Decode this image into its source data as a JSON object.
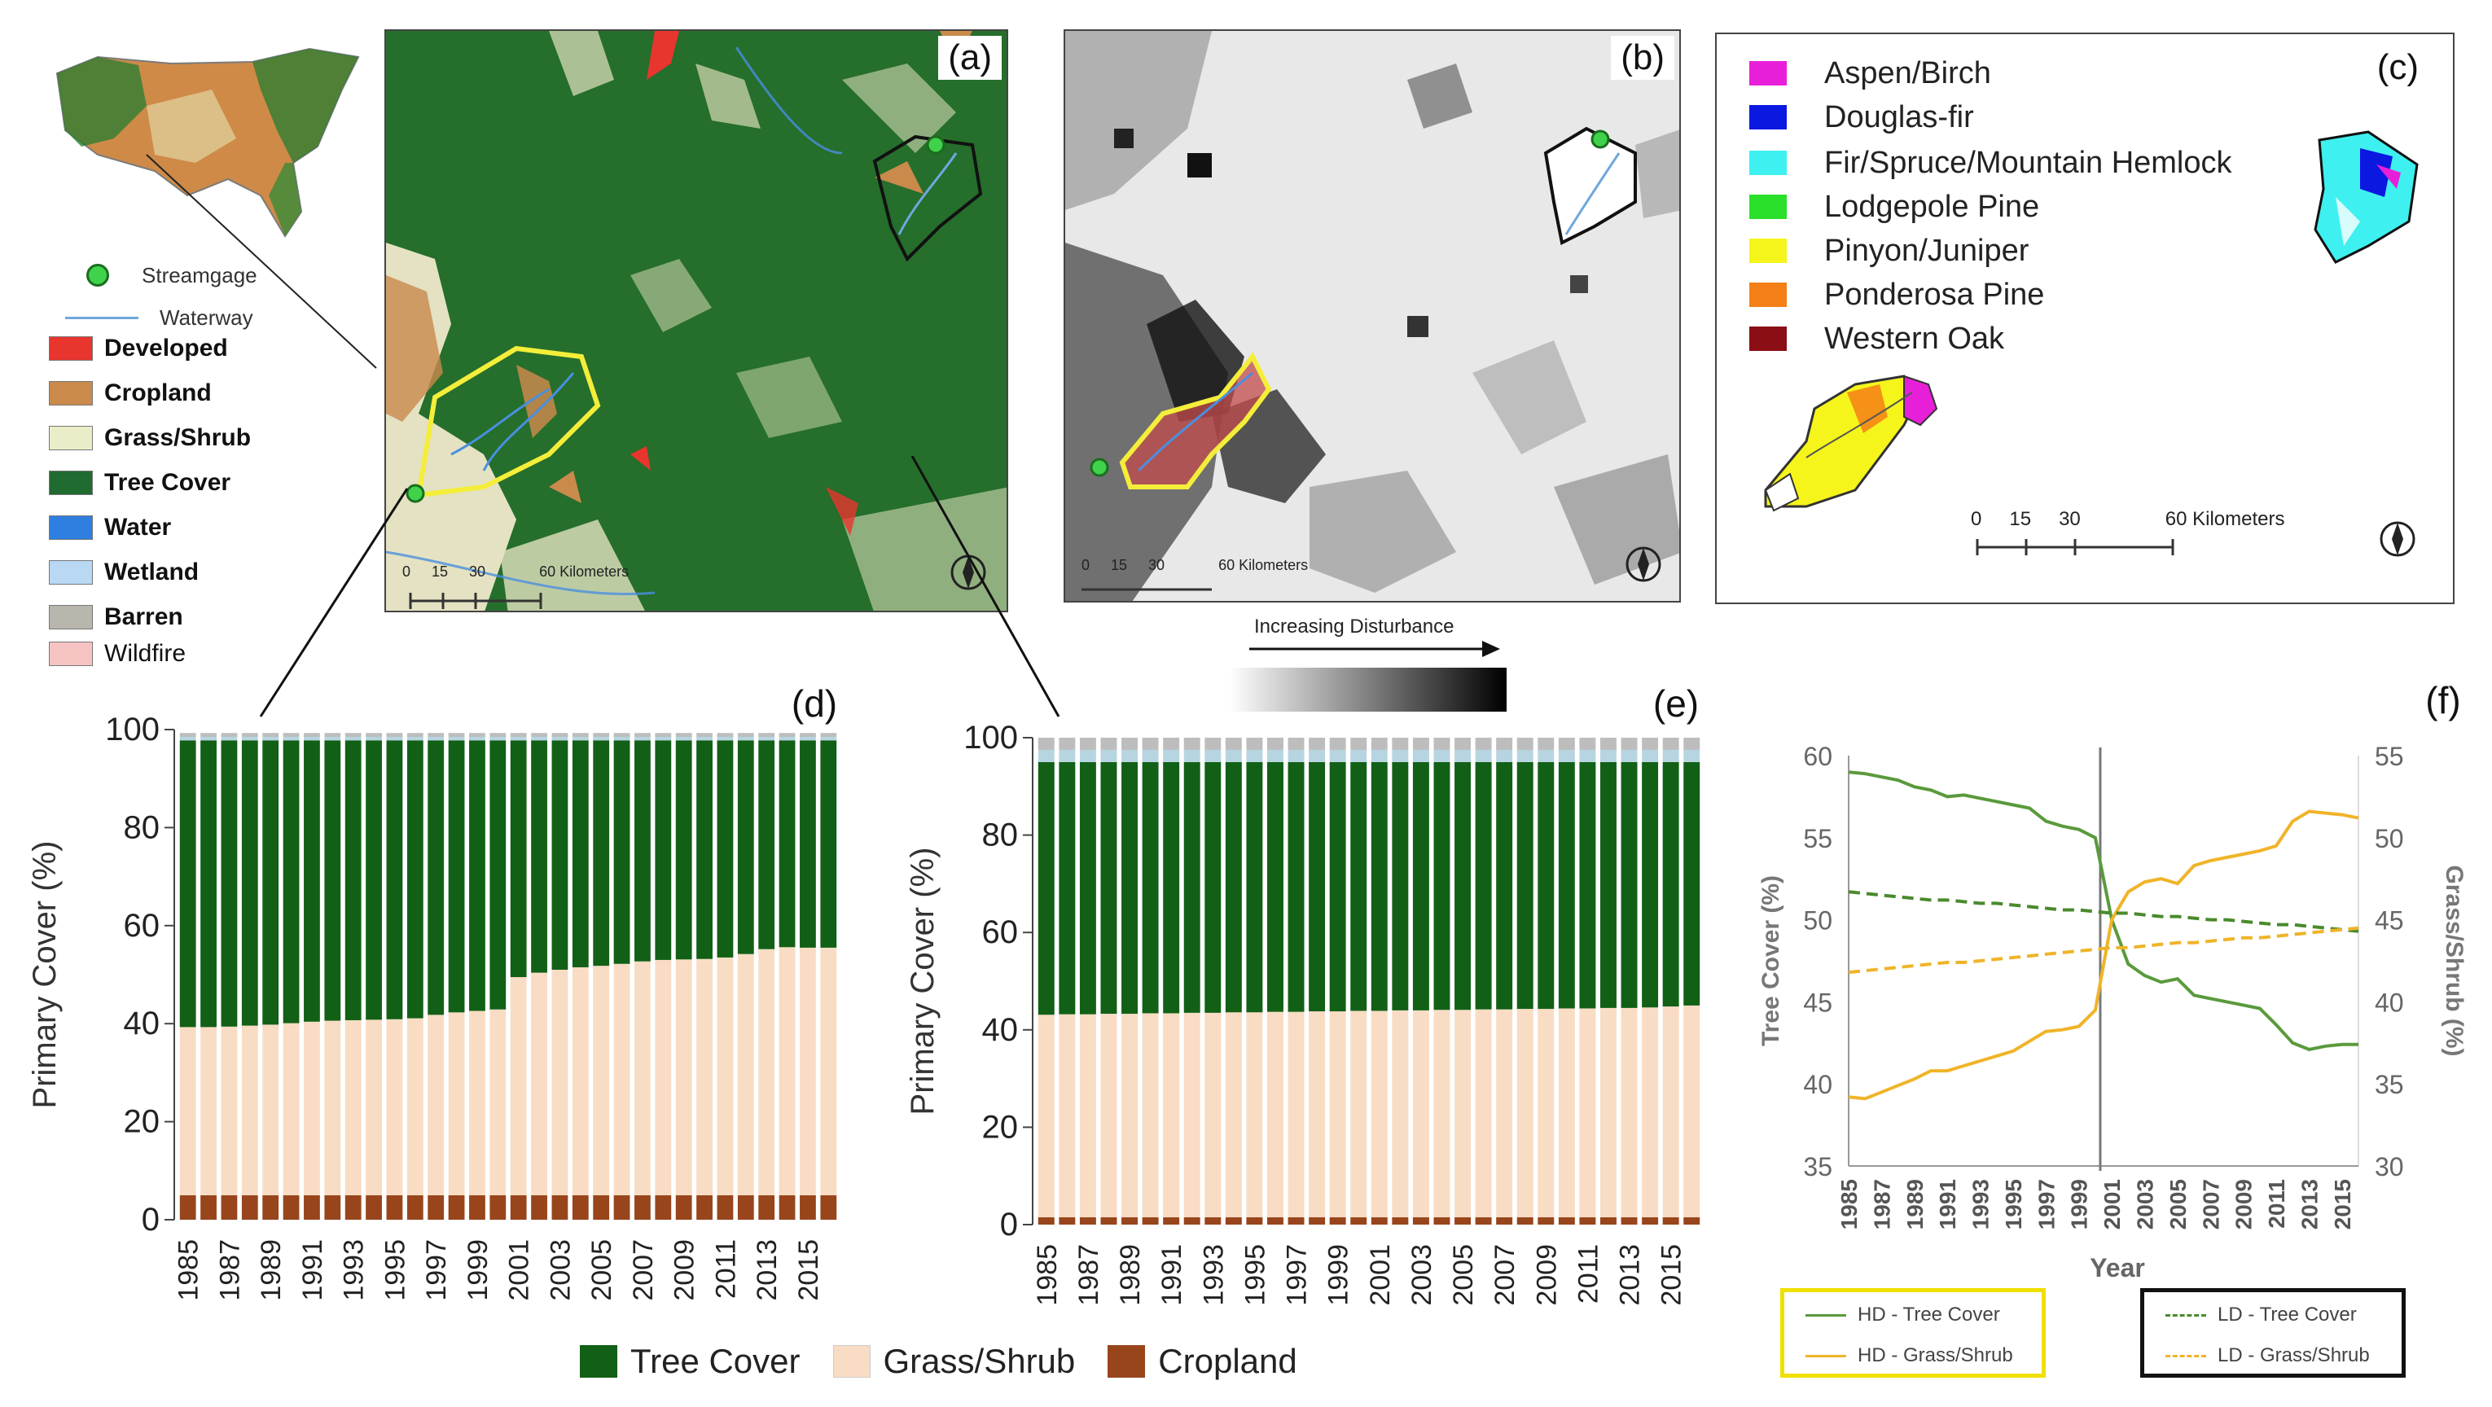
{
  "panel_labels": {
    "a": "(a)",
    "b": "(b)",
    "c": "(c)",
    "d": "(d)",
    "e": "(e)",
    "f": "(f)"
  },
  "map_legend": {
    "streamgage": "Streamgage",
    "waterway": "Waterway",
    "classes": [
      {
        "label": "Developed",
        "color": "#e8352e"
      },
      {
        "label": "Cropland",
        "color": "#c98a4c"
      },
      {
        "label": "Grass/Shrub",
        "color": "#ebedc9"
      },
      {
        "label": "Tree Cover",
        "color": "#1f6b30"
      },
      {
        "label": "Water",
        "color": "#2f7fe0"
      },
      {
        "label": "Wetland",
        "color": "#b8d8f3"
      },
      {
        "label": "Barren",
        "color": "#b9b6ae"
      },
      {
        "label": "Wildfire",
        "color": "#f6c3c3"
      }
    ]
  },
  "map_a": {
    "scale_labels": [
      "0",
      "15",
      "30",
      "60 Kilometers"
    ]
  },
  "map_b": {
    "scale_labels": [
      "0",
      "15",
      "30",
      "60 Kilometers"
    ],
    "disturbance_label": "Increasing Disturbance"
  },
  "map_c": {
    "species": [
      {
        "label": "Aspen/Birch",
        "color": "#e81fd9"
      },
      {
        "label": "Douglas-fir",
        "color": "#0a18e0"
      },
      {
        "label": "Fir/Spruce/Mountain Hemlock",
        "color": "#3ff0f0"
      },
      {
        "label": "Lodgepole Pine",
        "color": "#2ae02a"
      },
      {
        "label": "Pinyon/Juniper",
        "color": "#f5f51c"
      },
      {
        "label": "Ponderosa Pine",
        "color": "#f47f16"
      },
      {
        "label": "Western Oak",
        "color": "#8a0e14"
      }
    ],
    "scale_labels": [
      "0",
      "15",
      "30",
      "60 Kilometers"
    ]
  },
  "colors": {
    "tree": "#116016",
    "grass": "#f9dcc4",
    "crop": "#98451c",
    "top1": "#b7d5e1",
    "top2": "#bdbdbd"
  },
  "bottom_legend": {
    "tree": "Tree Cover",
    "grass": "Grass/Shrub",
    "crop": "Cropland"
  },
  "chart_data": [
    {
      "type": "bar",
      "panel": "(d)",
      "stacked": true,
      "ylabel": "Primary Cover (%)",
      "ylim": [
        0,
        100
      ],
      "yticks": [
        0,
        20,
        40,
        60,
        80,
        100
      ],
      "categories": [
        "1985",
        "1986",
        "1987",
        "1988",
        "1989",
        "1990",
        "1991",
        "1992",
        "1993",
        "1994",
        "1995",
        "1996",
        "1997",
        "1998",
        "1999",
        "2000",
        "2001",
        "2002",
        "2003",
        "2004",
        "2005",
        "2006",
        "2007",
        "2008",
        "2009",
        "2010",
        "2011",
        "2012",
        "2013",
        "2014",
        "2015",
        "2016"
      ],
      "tick_labels": [
        "1985",
        "1987",
        "1989",
        "1991",
        "1993",
        "1995",
        "1997",
        "1999",
        "2001",
        "2003",
        "2005",
        "2007",
        "2009",
        "2011",
        "2013",
        "2015"
      ],
      "series": [
        {
          "name": "Cropland",
          "values": [
            5,
            5,
            5,
            5,
            5,
            5,
            5,
            5,
            5,
            5,
            5,
            5,
            5,
            5,
            5,
            5,
            5,
            5,
            5,
            5,
            5,
            5,
            5,
            5,
            5,
            5,
            5,
            5,
            5,
            5,
            5,
            5
          ]
        },
        {
          "name": "Grass/Shrub",
          "values": [
            34.3,
            34.3,
            34.4,
            34.6,
            34.8,
            35.1,
            35.4,
            35.6,
            35.7,
            35.8,
            35.9,
            36.1,
            36.8,
            37.3,
            37.6,
            37.9,
            44.5,
            45.4,
            46.0,
            46.5,
            46.8,
            47.2,
            47.7,
            48.0,
            48.1,
            48.2,
            48.5,
            49.2,
            50.2,
            50.6,
            50.5,
            50.5
          ]
        },
        {
          "name": "Tree Cover",
          "values": [
            58.5,
            58.5,
            58.4,
            58.2,
            58.0,
            57.7,
            57.4,
            57.2,
            57.1,
            57.0,
            56.9,
            56.7,
            56.0,
            55.5,
            55.2,
            54.9,
            48.3,
            47.4,
            46.8,
            46.3,
            46.0,
            45.6,
            45.1,
            44.8,
            44.7,
            44.6,
            44.3,
            43.6,
            42.6,
            42.2,
            42.3,
            42.3
          ]
        },
        {
          "name": "Other (light blue)",
          "values": [
            0.7,
            0.7,
            0.7,
            0.7,
            0.7,
            0.7,
            0.7,
            0.7,
            0.7,
            0.7,
            0.7,
            0.7,
            0.7,
            0.7,
            0.7,
            0.7,
            0.7,
            0.7,
            0.7,
            0.7,
            0.7,
            0.7,
            0.7,
            0.7,
            0.7,
            0.7,
            0.7,
            0.7,
            0.7,
            0.7,
            0.7,
            0.7
          ]
        },
        {
          "name": "Other (gray)",
          "values": [
            0.8,
            0.8,
            0.8,
            0.8,
            0.8,
            0.8,
            0.8,
            0.8,
            0.8,
            0.8,
            0.8,
            0.8,
            0.8,
            0.8,
            0.8,
            0.8,
            0.8,
            0.8,
            0.8,
            0.8,
            0.8,
            0.8,
            0.8,
            0.8,
            0.8,
            0.8,
            0.8,
            0.8,
            0.8,
            0.8,
            0.8,
            0.8
          ]
        }
      ]
    },
    {
      "type": "bar",
      "panel": "(e)",
      "stacked": true,
      "ylabel": "Primary Cover (%)",
      "ylim": [
        0,
        100
      ],
      "yticks": [
        0,
        20,
        40,
        60,
        80,
        100
      ],
      "categories": [
        "1985",
        "1986",
        "1987",
        "1988",
        "1989",
        "1990",
        "1991",
        "1992",
        "1993",
        "1994",
        "1995",
        "1996",
        "1997",
        "1998",
        "1999",
        "2000",
        "2001",
        "2002",
        "2003",
        "2004",
        "2005",
        "2006",
        "2007",
        "2008",
        "2009",
        "2010",
        "2011",
        "2012",
        "2013",
        "2014",
        "2015",
        "2016"
      ],
      "tick_labels": [
        "1985",
        "1987",
        "1989",
        "1991",
        "1993",
        "1995",
        "1997",
        "1999",
        "2001",
        "2003",
        "2005",
        "2007",
        "2009",
        "2011",
        "2013",
        "2015"
      ],
      "series": [
        {
          "name": "Cropland",
          "values": [
            1.5,
            1.5,
            1.5,
            1.5,
            1.5,
            1.5,
            1.5,
            1.5,
            1.5,
            1.5,
            1.5,
            1.5,
            1.5,
            1.5,
            1.5,
            1.5,
            1.5,
            1.5,
            1.5,
            1.5,
            1.5,
            1.5,
            1.5,
            1.5,
            1.5,
            1.5,
            1.5,
            1.5,
            1.5,
            1.5,
            1.5,
            1.5
          ]
        },
        {
          "name": "Grass/Shrub",
          "values": [
            41.6,
            41.7,
            41.7,
            41.8,
            41.8,
            41.9,
            41.9,
            42.0,
            42.0,
            42.1,
            42.1,
            42.2,
            42.2,
            42.3,
            42.3,
            42.4,
            42.4,
            42.5,
            42.5,
            42.6,
            42.6,
            42.7,
            42.7,
            42.8,
            42.8,
            42.9,
            42.9,
            43.0,
            43.0,
            43.1,
            43.3,
            43.5
          ]
        },
        {
          "name": "Tree Cover",
          "values": [
            51.9,
            51.8,
            51.8,
            51.7,
            51.7,
            51.6,
            51.6,
            51.5,
            51.5,
            51.4,
            51.4,
            51.3,
            51.3,
            51.2,
            51.2,
            51.1,
            51.1,
            51.0,
            51.0,
            50.9,
            50.9,
            50.8,
            50.8,
            50.7,
            50.7,
            50.6,
            50.6,
            50.5,
            50.5,
            50.4,
            50.2,
            50.0
          ]
        },
        {
          "name": "Other (light blue)",
          "values": [
            2.5,
            2.5,
            2.5,
            2.5,
            2.5,
            2.5,
            2.5,
            2.5,
            2.5,
            2.5,
            2.5,
            2.5,
            2.5,
            2.5,
            2.5,
            2.5,
            2.5,
            2.5,
            2.5,
            2.5,
            2.5,
            2.5,
            2.5,
            2.5,
            2.5,
            2.5,
            2.5,
            2.5,
            2.5,
            2.5,
            2.5,
            2.5
          ]
        },
        {
          "name": "Other (gray)",
          "values": [
            2.5,
            2.5,
            2.5,
            2.5,
            2.5,
            2.5,
            2.5,
            2.5,
            2.5,
            2.5,
            2.5,
            2.5,
            2.5,
            2.5,
            2.5,
            2.5,
            2.5,
            2.5,
            2.5,
            2.5,
            2.5,
            2.5,
            2.5,
            2.5,
            2.5,
            2.5,
            2.5,
            2.5,
            2.5,
            2.5,
            2.5,
            2.5
          ]
        }
      ]
    },
    {
      "type": "line",
      "panel": "(f)",
      "xlabel": "Year",
      "ylabel": "Tree Cover (%)",
      "ylabel_right": "Grass/Shrub (%)",
      "ylim": [
        35,
        60
      ],
      "ylim_right": [
        30,
        55
      ],
      "yticks": [
        35,
        40,
        45,
        50,
        55,
        60
      ],
      "yticks_right": [
        30,
        35,
        40,
        45,
        50,
        55
      ],
      "x": [
        1985,
        1986,
        1987,
        1988,
        1989,
        1990,
        1991,
        1992,
        1993,
        1994,
        1995,
        1996,
        1997,
        1998,
        1999,
        2000,
        2001,
        2002,
        2003,
        2004,
        2005,
        2006,
        2007,
        2008,
        2009,
        2010,
        2011,
        2012,
        2013,
        2014,
        2015,
        2016
      ],
      "tick_labels": [
        "1985",
        "1987",
        "1989",
        "1991",
        "1993",
        "1995",
        "1997",
        "1999",
        "2001",
        "2003",
        "2005",
        "2007",
        "2009",
        "2011",
        "2013",
        "2015"
      ],
      "vline_x": 2000.3,
      "series": [
        {
          "name": "HD - Tree Cover",
          "axis": "left",
          "color": "#5a9a3c",
          "dash": false,
          "values": [
            59.0,
            58.9,
            58.7,
            58.5,
            58.1,
            57.9,
            57.5,
            57.6,
            57.4,
            57.2,
            57.0,
            56.8,
            56.0,
            55.7,
            55.5,
            55.0,
            50.0,
            47.3,
            46.6,
            46.2,
            46.4,
            45.4,
            45.2,
            45.0,
            44.8,
            44.6,
            43.6,
            42.5,
            42.1,
            42.3,
            42.4,
            42.4
          ]
        },
        {
          "name": "HD - Grass/Shrub",
          "axis": "right",
          "color": "#f0b429",
          "dash": false,
          "values": [
            34.2,
            34.1,
            34.5,
            34.9,
            35.3,
            35.8,
            35.8,
            36.1,
            36.4,
            36.7,
            37.0,
            37.6,
            38.2,
            38.3,
            38.5,
            39.5,
            45.0,
            46.7,
            47.3,
            47.5,
            47.2,
            48.3,
            48.6,
            48.8,
            49.0,
            49.2,
            49.5,
            51.0,
            51.6,
            51.5,
            51.4,
            51.2
          ]
        },
        {
          "name": "LD - Tree Cover",
          "axis": "left",
          "color": "#4a8a2c",
          "dash": true,
          "values": [
            51.7,
            51.6,
            51.5,
            51.4,
            51.3,
            51.2,
            51.2,
            51.1,
            51.0,
            51.0,
            50.9,
            50.8,
            50.7,
            50.6,
            50.6,
            50.5,
            50.4,
            50.4,
            50.3,
            50.2,
            50.2,
            50.1,
            50.0,
            50.0,
            49.9,
            49.8,
            49.7,
            49.7,
            49.6,
            49.5,
            49.4,
            49.3
          ]
        },
        {
          "name": "LD - Grass/Shrub",
          "axis": "right",
          "color": "#f0b429",
          "dash": true,
          "values": [
            41.8,
            41.9,
            42.0,
            42.1,
            42.2,
            42.3,
            42.4,
            42.4,
            42.5,
            42.6,
            42.7,
            42.8,
            42.9,
            43.0,
            43.1,
            43.2,
            43.3,
            43.3,
            43.4,
            43.5,
            43.6,
            43.6,
            43.7,
            43.8,
            43.9,
            43.9,
            44.0,
            44.1,
            44.2,
            44.3,
            44.4,
            44.5
          ]
        }
      ]
    }
  ]
}
